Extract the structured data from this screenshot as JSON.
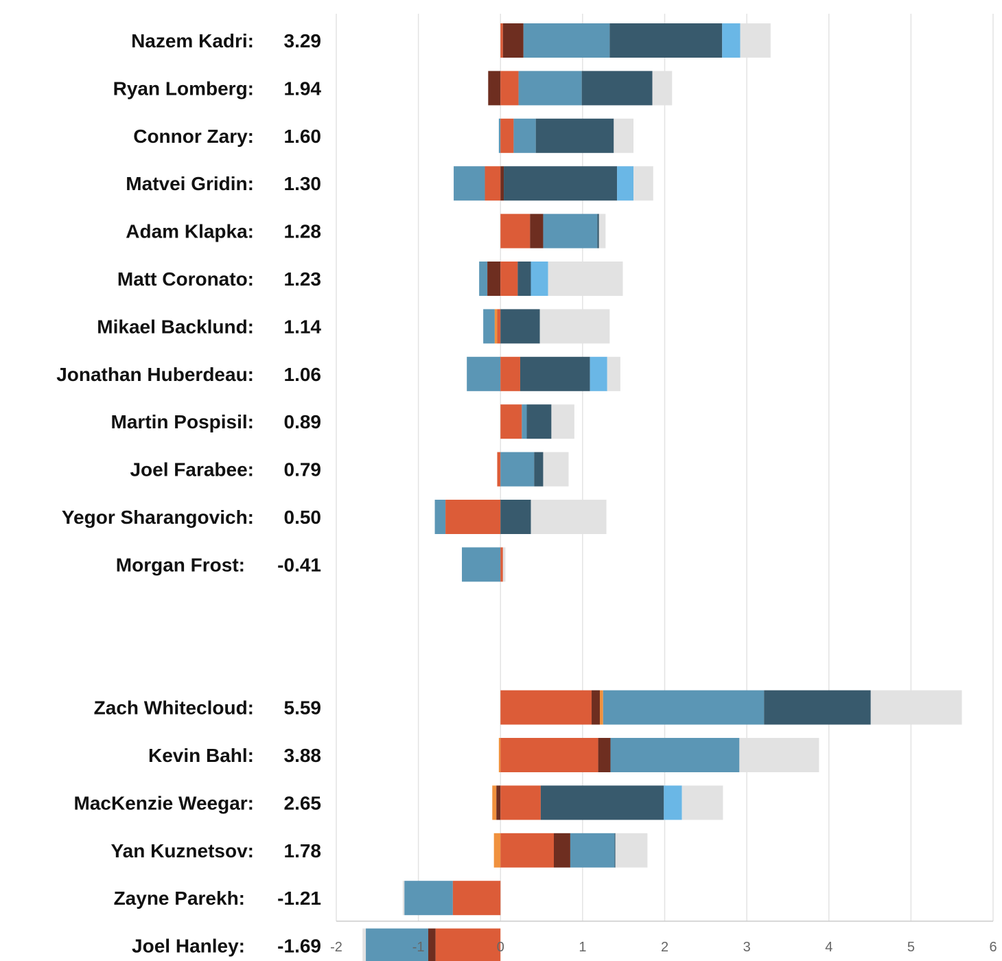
{
  "chart_data": {
    "type": "bar",
    "orientation": "horizontal",
    "stacked": true,
    "xlim": [
      -2,
      6
    ],
    "x_ticks": [
      "-2",
      "-1",
      "0",
      "1",
      "2",
      "3",
      "4",
      "5",
      "6"
    ],
    "grid": true,
    "legend": "none",
    "component_colors": {
      "orange_red": "#dc5c38",
      "dark_brown": "#6e2e20",
      "light_orange": "#f0913e",
      "steel_blue": "#5b96b5",
      "dark_slate": "#385a6d",
      "sky_blue": "#6ab7e6",
      "light_gray": "#e2e2e2"
    },
    "groups": [
      {
        "players": [
          {
            "name": "Nazem Kadri:",
            "total": "3.29",
            "segments": [
              [
                0.0,
                0.03,
                "orange_red"
              ],
              [
                0.03,
                0.28,
                "dark_brown"
              ],
              [
                0.28,
                1.33,
                "steel_blue"
              ],
              [
                1.33,
                2.7,
                "dark_slate"
              ],
              [
                2.7,
                2.92,
                "sky_blue"
              ],
              [
                2.92,
                3.29,
                "light_gray"
              ]
            ]
          },
          {
            "name": "Ryan Lomberg:",
            "total": "1.94",
            "segments": [
              [
                -0.15,
                0.0,
                "dark_brown"
              ],
              [
                0.0,
                0.22,
                "orange_red"
              ],
              [
                0.22,
                0.99,
                "steel_blue"
              ],
              [
                0.99,
                1.85,
                "dark_slate"
              ],
              [
                1.85,
                2.09,
                "light_gray"
              ]
            ]
          },
          {
            "name": "Connor Zary:",
            "total": "1.60",
            "segments": [
              [
                -0.02,
                0.0,
                "steel_blue"
              ],
              [
                0.0,
                0.16,
                "orange_red"
              ],
              [
                0.16,
                0.43,
                "steel_blue"
              ],
              [
                0.43,
                1.38,
                "dark_slate"
              ],
              [
                1.38,
                1.62,
                "light_gray"
              ]
            ]
          },
          {
            "name": "Matvei Gridin:",
            "total": "1.30",
            "segments": [
              [
                -0.57,
                -0.19,
                "steel_blue"
              ],
              [
                -0.19,
                0.0,
                "orange_red"
              ],
              [
                0.0,
                0.04,
                "dark_brown"
              ],
              [
                0.04,
                1.42,
                "dark_slate"
              ],
              [
                1.42,
                1.62,
                "sky_blue"
              ],
              [
                1.62,
                1.86,
                "light_gray"
              ]
            ]
          },
          {
            "name": "Adam Klapka:",
            "total": "1.28",
            "segments": [
              [
                0.0,
                0.36,
                "orange_red"
              ],
              [
                0.36,
                0.52,
                "dark_brown"
              ],
              [
                0.52,
                1.18,
                "steel_blue"
              ],
              [
                1.18,
                1.2,
                "dark_slate"
              ],
              [
                1.2,
                1.28,
                "light_gray"
              ]
            ]
          },
          {
            "name": "Matt Coronato:",
            "total": "1.23",
            "segments": [
              [
                -0.26,
                -0.16,
                "steel_blue"
              ],
              [
                -0.16,
                0.0,
                "dark_brown"
              ],
              [
                0.0,
                0.21,
                "orange_red"
              ],
              [
                0.21,
                0.37,
                "dark_slate"
              ],
              [
                0.37,
                0.58,
                "sky_blue"
              ],
              [
                0.58,
                1.49,
                "light_gray"
              ]
            ]
          },
          {
            "name": "Mikael Backlund:",
            "total": "1.14",
            "segments": [
              [
                -0.21,
                -0.07,
                "steel_blue"
              ],
              [
                -0.07,
                -0.04,
                "light_orange"
              ],
              [
                -0.04,
                0.0,
                "orange_red"
              ],
              [
                0.0,
                0.48,
                "dark_slate"
              ],
              [
                0.48,
                1.33,
                "light_gray"
              ]
            ]
          },
          {
            "name": "Jonathan Huberdeau:",
            "total": "1.06",
            "segments": [
              [
                -0.41,
                0.0,
                "steel_blue"
              ],
              [
                0.0,
                0.24,
                "orange_red"
              ],
              [
                0.24,
                1.09,
                "dark_slate"
              ],
              [
                1.09,
                1.3,
                "sky_blue"
              ],
              [
                1.3,
                1.46,
                "light_gray"
              ]
            ]
          },
          {
            "name": "Martin Pospisil:",
            "total": "0.89",
            "segments": [
              [
                0.0,
                0.26,
                "orange_red"
              ],
              [
                0.26,
                0.32,
                "steel_blue"
              ],
              [
                0.32,
                0.62,
                "dark_slate"
              ],
              [
                0.62,
                0.9,
                "light_gray"
              ]
            ]
          },
          {
            "name": "Joel Farabee:",
            "total": "0.79",
            "segments": [
              [
                -0.04,
                0.0,
                "orange_red"
              ],
              [
                0.0,
                0.41,
                "steel_blue"
              ],
              [
                0.41,
                0.52,
                "dark_slate"
              ],
              [
                0.52,
                0.83,
                "light_gray"
              ]
            ]
          },
          {
            "name": "Yegor Sharangovich:",
            "total": "0.50",
            "segments": [
              [
                -0.8,
                -0.67,
                "steel_blue"
              ],
              [
                -0.67,
                0.0,
                "orange_red"
              ],
              [
                0.0,
                0.37,
                "dark_slate"
              ],
              [
                0.37,
                1.29,
                "light_gray"
              ]
            ]
          },
          {
            "name": "Morgan Frost:",
            "total": "-0.41",
            "segments": [
              [
                -0.47,
                0.0,
                "steel_blue"
              ],
              [
                0.0,
                0.03,
                "orange_red"
              ],
              [
                0.03,
                0.06,
                "light_gray"
              ]
            ]
          }
        ]
      },
      {
        "players": [
          {
            "name": "Zach Whitecloud:",
            "total": "5.59",
            "segments": [
              [
                0.0,
                1.11,
                "orange_red"
              ],
              [
                1.11,
                1.21,
                "dark_brown"
              ],
              [
                1.21,
                1.25,
                "light_orange"
              ],
              [
                1.25,
                3.21,
                "steel_blue"
              ],
              [
                3.21,
                4.51,
                "dark_slate"
              ],
              [
                4.51,
                5.62,
                "light_gray"
              ]
            ]
          },
          {
            "name": "Kevin Bahl:",
            "total": "3.88",
            "segments": [
              [
                -0.02,
                0.0,
                "light_orange"
              ],
              [
                0.0,
                1.19,
                "orange_red"
              ],
              [
                1.19,
                1.34,
                "dark_brown"
              ],
              [
                1.34,
                2.91,
                "steel_blue"
              ],
              [
                2.91,
                3.88,
                "light_gray"
              ]
            ]
          },
          {
            "name": "MacKenzie Weegar:",
            "total": "2.65",
            "segments": [
              [
                -0.1,
                -0.05,
                "light_orange"
              ],
              [
                -0.05,
                0.0,
                "dark_brown"
              ],
              [
                0.0,
                0.49,
                "orange_red"
              ],
              [
                0.49,
                1.99,
                "dark_slate"
              ],
              [
                1.99,
                2.21,
                "sky_blue"
              ],
              [
                2.21,
                2.71,
                "light_gray"
              ]
            ]
          },
          {
            "name": "Yan Kuznetsov:",
            "total": "1.78",
            "segments": [
              [
                -0.08,
                0.0,
                "light_orange"
              ],
              [
                0.0,
                0.65,
                "orange_red"
              ],
              [
                0.65,
                0.85,
                "dark_brown"
              ],
              [
                0.85,
                1.39,
                "steel_blue"
              ],
              [
                1.39,
                1.4,
                "dark_slate"
              ],
              [
                1.4,
                1.79,
                "light_gray"
              ]
            ]
          },
          {
            "name": "Zayne Parekh:",
            "total": "-1.21",
            "segments": [
              [
                -1.19,
                -1.17,
                "light_gray"
              ],
              [
                -1.17,
                -0.58,
                "steel_blue"
              ],
              [
                -0.58,
                0.0,
                "orange_red"
              ]
            ]
          },
          {
            "name": "Joel Hanley:",
            "total": "-1.69",
            "segments": [
              [
                -1.68,
                -1.64,
                "light_gray"
              ],
              [
                -1.64,
                -0.88,
                "steel_blue"
              ],
              [
                -0.88,
                -0.79,
                "dark_brown"
              ],
              [
                -0.79,
                0.0,
                "orange_red"
              ]
            ]
          }
        ]
      }
    ]
  }
}
